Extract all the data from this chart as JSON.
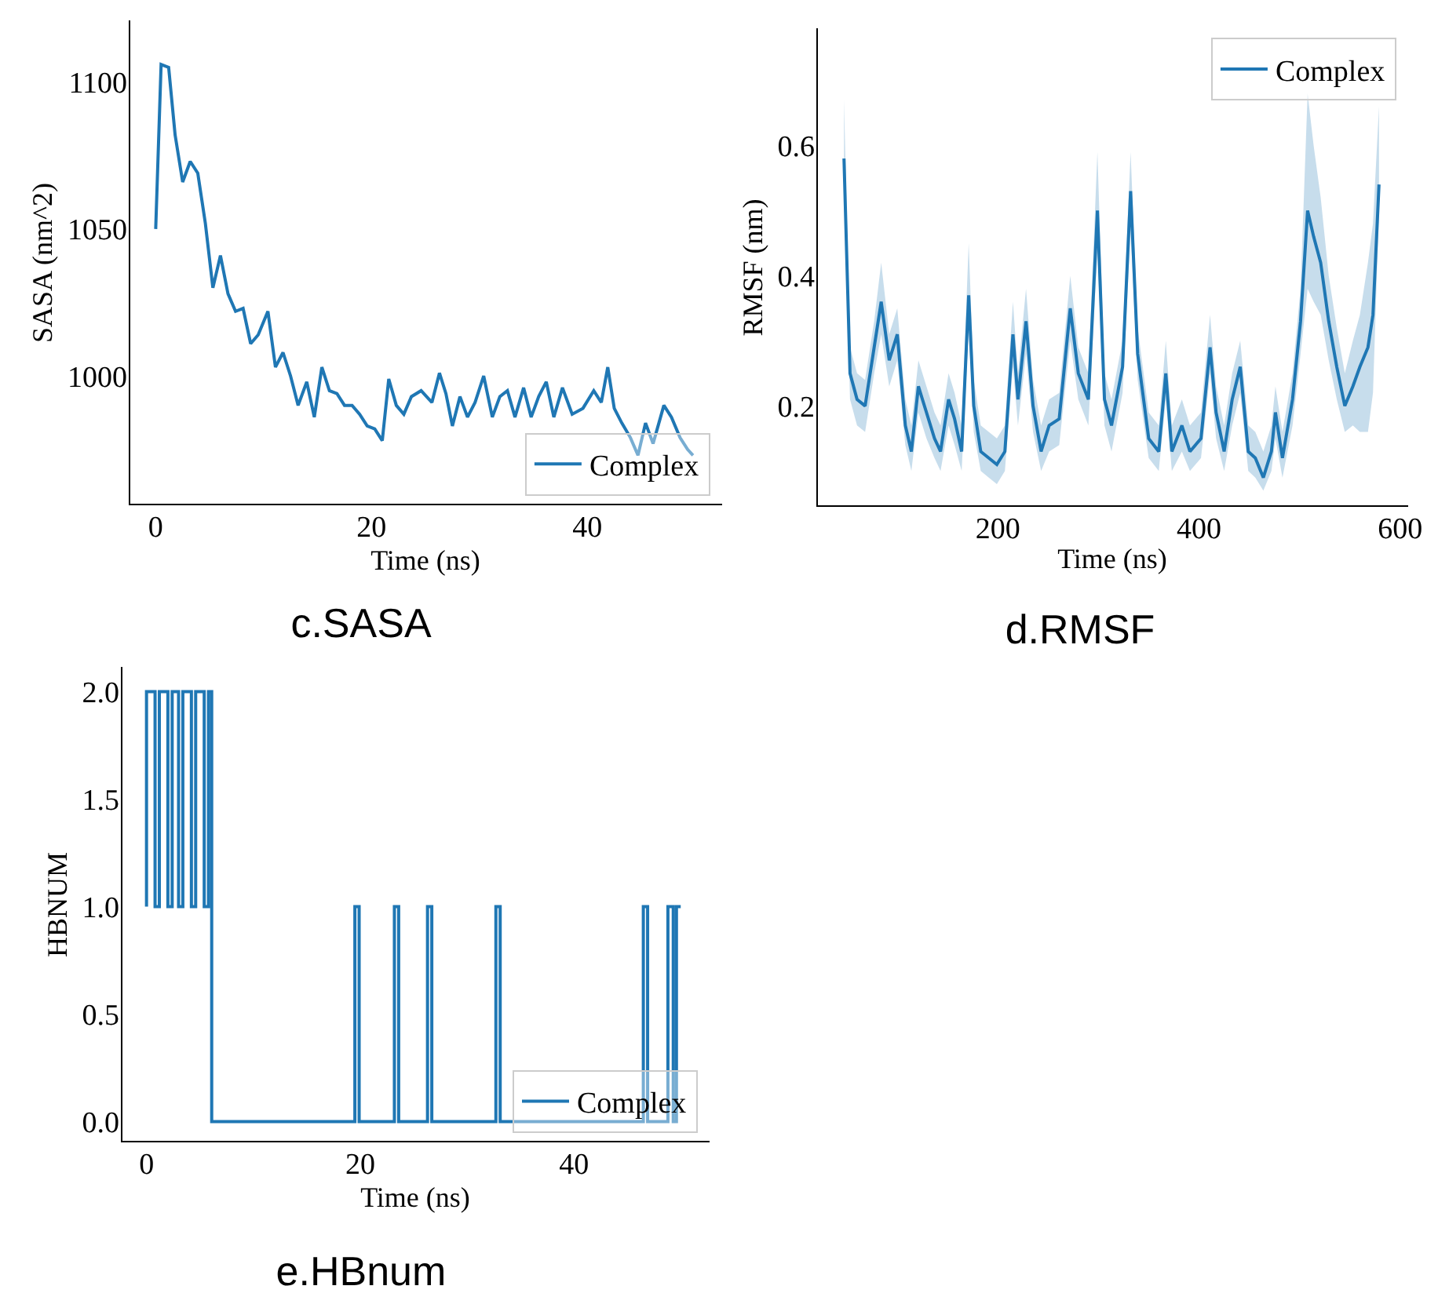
{
  "chart_data": [
    {
      "type": "line",
      "title": "c.SASA",
      "xlabel": "Time (ns)",
      "ylabel": "SASA (nm^2)",
      "xlim": [
        -2.5,
        52.5
      ],
      "ylim": [
        956,
        1121
      ],
      "xticks": [
        0,
        20,
        40
      ],
      "yticks": [
        1000,
        1050,
        1100
      ],
      "legend": "bottom right",
      "series": [
        {
          "name": "Complex",
          "color": "#1f77b4",
          "x": [
            0,
            0.5,
            1.2,
            1.8,
            2.5,
            3.2,
            3.9,
            4.6,
            5.3,
            6.0,
            6.7,
            7.4,
            8.1,
            8.8,
            9.5,
            10.4,
            11.1,
            11.8,
            12.5,
            13.2,
            14.0,
            14.7,
            15.4,
            16.1,
            16.8,
            17.5,
            18.2,
            18.9,
            19.6,
            20.3,
            21.0,
            21.6,
            22.3,
            23.0,
            23.7,
            24.6,
            25.6,
            26.3,
            26.9,
            27.5,
            28.2,
            28.9,
            29.6,
            30.4,
            31.2,
            31.9,
            32.6,
            33.3,
            34.1,
            34.8,
            35.5,
            36.2,
            36.9,
            37.7,
            38.6,
            39.6,
            40.6,
            41.3,
            41.9,
            42.5,
            43.2,
            44.0,
            44.7,
            45.4,
            46.1,
            47.1,
            47.8,
            48.6,
            49.3,
            49.8
          ],
          "values": [
            1050,
            1106,
            1105,
            1082,
            1066,
            1073,
            1069,
            1052,
            1030,
            1041,
            1028,
            1022,
            1023,
            1011,
            1014,
            1022,
            1003,
            1008,
            1000,
            990,
            998,
            986,
            1003,
            995,
            994,
            990,
            990,
            987,
            983,
            982,
            978,
            999,
            990,
            987,
            993,
            995,
            991,
            1001,
            994,
            983,
            993,
            986,
            991,
            1000,
            986,
            993,
            995,
            986,
            996,
            986,
            993,
            998,
            986,
            996,
            987,
            989,
            995,
            991,
            1003,
            989,
            984,
            979,
            973,
            984,
            977,
            990,
            986,
            979,
            975,
            973
          ]
        }
      ]
    },
    {
      "type": "line",
      "title": "d.RMSF",
      "xlabel": "Time (ns)",
      "ylabel": "RMSF (nm)",
      "xlim": [
        19.5,
        608
      ],
      "ylim": [
        0.045,
        0.78
      ],
      "xticks": [
        200,
        400,
        600
      ],
      "yticks": [
        0.2,
        0.4,
        0.6
      ],
      "legend": "top right",
      "series": [
        {
          "name": "Complex",
          "color": "#1f77b4",
          "x": [
            47,
            53,
            60,
            68,
            77,
            84,
            92,
            100,
            108,
            114,
            121,
            129,
            137,
            143,
            151,
            157,
            164,
            171,
            176,
            183,
            191,
            199,
            207,
            215,
            220,
            228,
            235,
            243,
            251,
            261,
            272,
            280,
            290,
            299,
            306,
            313,
            324,
            332,
            339,
            350,
            360,
            367,
            373,
            383,
            391,
            402,
            411,
            417,
            425,
            433,
            441,
            449,
            456,
            464,
            472,
            476,
            483,
            493,
            501,
            508,
            514,
            521,
            529,
            537,
            545,
            553,
            560,
            568,
            573,
            579
          ],
          "values": [
            0.58,
            0.25,
            0.21,
            0.2,
            0.29,
            0.36,
            0.27,
            0.31,
            0.17,
            0.13,
            0.23,
            0.19,
            0.15,
            0.13,
            0.21,
            0.18,
            0.13,
            0.37,
            0.2,
            0.13,
            0.12,
            0.11,
            0.13,
            0.31,
            0.21,
            0.33,
            0.2,
            0.13,
            0.17,
            0.18,
            0.35,
            0.25,
            0.21,
            0.5,
            0.21,
            0.17,
            0.26,
            0.53,
            0.28,
            0.15,
            0.13,
            0.25,
            0.13,
            0.17,
            0.13,
            0.15,
            0.29,
            0.19,
            0.13,
            0.21,
            0.26,
            0.13,
            0.12,
            0.09,
            0.13,
            0.19,
            0.12,
            0.21,
            0.33,
            0.5,
            0.46,
            0.42,
            0.33,
            0.26,
            0.2,
            0.23,
            0.26,
            0.29,
            0.34,
            0.54
          ],
          "lower": [
            0.55,
            0.21,
            0.17,
            0.16,
            0.25,
            0.31,
            0.23,
            0.27,
            0.14,
            0.1,
            0.19,
            0.15,
            0.12,
            0.1,
            0.17,
            0.14,
            0.1,
            0.32,
            0.16,
            0.1,
            0.09,
            0.08,
            0.1,
            0.26,
            0.17,
            0.28,
            0.16,
            0.1,
            0.13,
            0.14,
            0.3,
            0.21,
            0.17,
            0.44,
            0.17,
            0.13,
            0.22,
            0.47,
            0.24,
            0.12,
            0.1,
            0.21,
            0.1,
            0.13,
            0.1,
            0.12,
            0.25,
            0.15,
            0.1,
            0.17,
            0.22,
            0.1,
            0.09,
            0.07,
            0.1,
            0.15,
            0.09,
            0.17,
            0.28,
            0.38,
            0.36,
            0.34,
            0.27,
            0.21,
            0.16,
            0.17,
            0.16,
            0.16,
            0.22,
            0.5
          ],
          "upper": [
            0.67,
            0.29,
            0.25,
            0.24,
            0.33,
            0.42,
            0.31,
            0.35,
            0.21,
            0.17,
            0.27,
            0.23,
            0.19,
            0.17,
            0.25,
            0.22,
            0.17,
            0.45,
            0.24,
            0.17,
            0.16,
            0.15,
            0.17,
            0.36,
            0.25,
            0.38,
            0.24,
            0.17,
            0.21,
            0.22,
            0.4,
            0.29,
            0.25,
            0.59,
            0.25,
            0.21,
            0.3,
            0.59,
            0.32,
            0.19,
            0.17,
            0.3,
            0.17,
            0.21,
            0.17,
            0.19,
            0.34,
            0.23,
            0.17,
            0.25,
            0.3,
            0.17,
            0.16,
            0.13,
            0.17,
            0.23,
            0.16,
            0.25,
            0.38,
            0.68,
            0.6,
            0.52,
            0.4,
            0.32,
            0.25,
            0.3,
            0.34,
            0.42,
            0.48,
            0.66
          ]
        }
      ]
    },
    {
      "type": "line",
      "title": "e.HBnum",
      "xlabel": "Time (ns)",
      "ylabel": "HBNUM",
      "xlim": [
        -2.4,
        52.7
      ],
      "ylim": [
        -0.097,
        2.115
      ],
      "xticks": [
        0,
        20,
        40
      ],
      "yticks": [
        {
          "value": 0,
          "label": "0.0"
        },
        {
          "value": 0.5,
          "label": "0.5"
        },
        {
          "value": 1,
          "label": "1.0"
        },
        {
          "value": 1.5,
          "label": "1.5"
        },
        {
          "value": 2,
          "label": "2.0"
        }
      ],
      "legend": "bottom right",
      "series": [
        {
          "name": "Complex",
          "color": "#1f77b4",
          "x": [
            0,
            0,
            0.8,
            0.8,
            1.2,
            1.2,
            2.0,
            2.0,
            2.4,
            2.4,
            3.0,
            3.0,
            3.4,
            3.4,
            4.2,
            4.2,
            4.6,
            4.6,
            5.4,
            5.4,
            5.8,
            5.8,
            6.1,
            6.1,
            19.5,
            19.5,
            19.9,
            19.9,
            23.2,
            23.2,
            23.6,
            23.6,
            26.3,
            26.3,
            26.7,
            26.7,
            32.7,
            32.7,
            33.1,
            33.1,
            46.5,
            46.5,
            46.9,
            46.9,
            48.8,
            48.8,
            49.3,
            49.3,
            49.6,
            49.6,
            50
          ],
          "values": [
            1,
            2,
            2,
            1,
            1,
            2,
            2,
            1,
            1,
            2,
            2,
            1,
            1,
            2,
            2,
            1,
            1,
            2,
            2,
            1,
            1,
            2,
            2,
            0,
            0,
            1,
            1,
            0,
            0,
            1,
            1,
            0,
            0,
            1,
            1,
            0,
            0,
            1,
            1,
            0,
            0,
            1,
            1,
            0,
            0,
            1,
            1,
            0,
            0,
            1,
            1
          ]
        }
      ]
    }
  ]
}
